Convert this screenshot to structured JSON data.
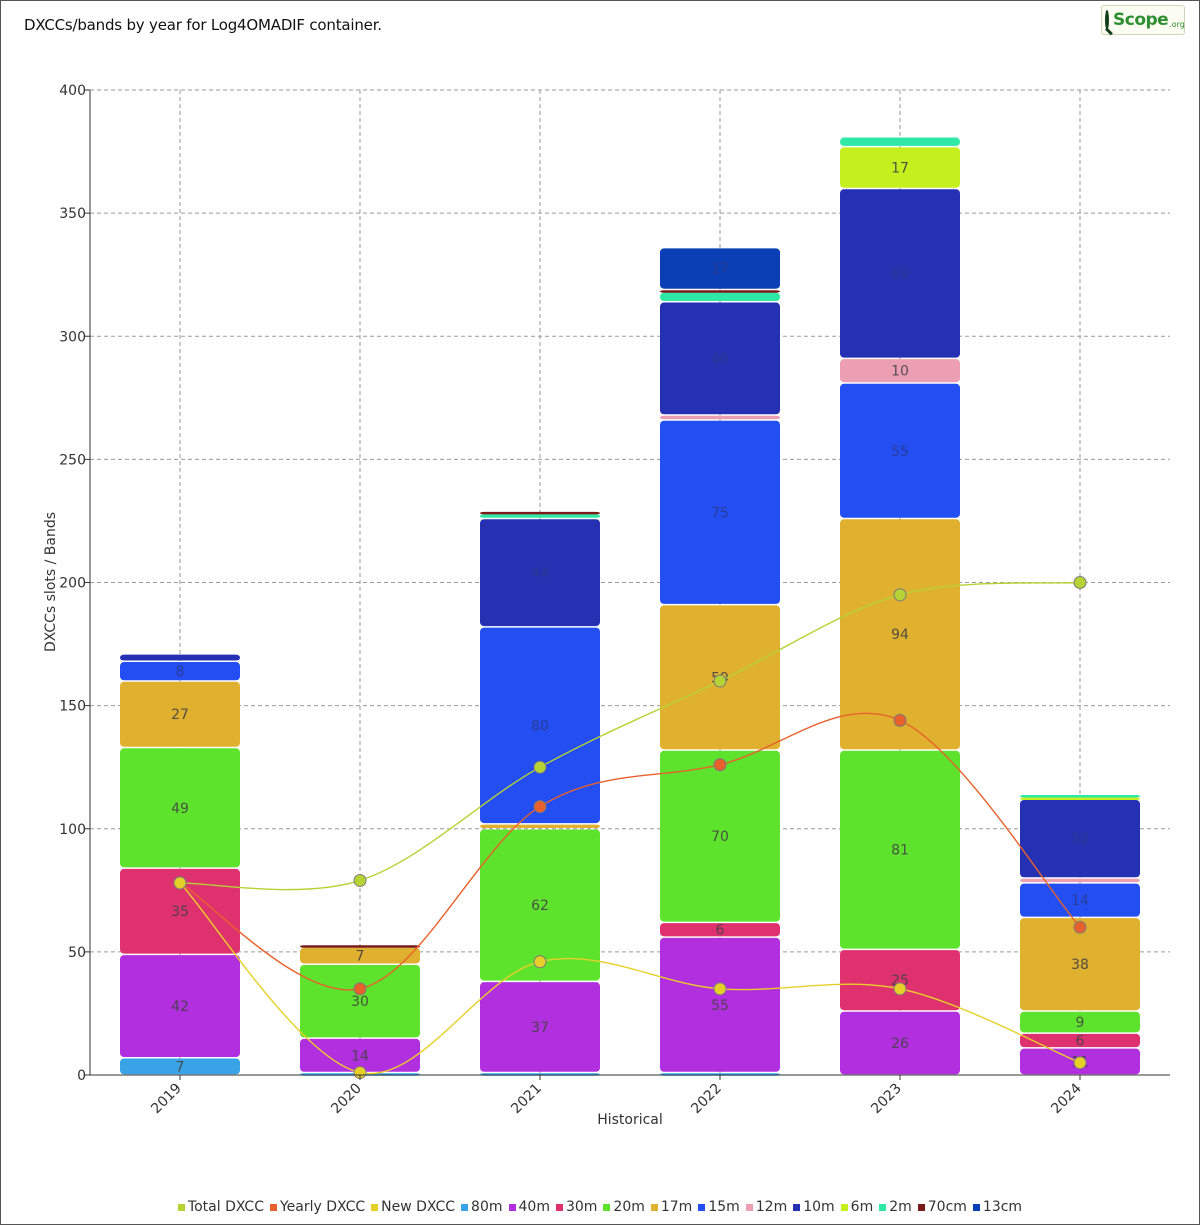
{
  "title": "DXCCs/bands by year for Log4OMADIF container.",
  "logo": {
    "text": "Scope",
    "suffix": ".org"
  },
  "chart_data": {
    "type": "bar",
    "stacked": true,
    "xlabel": "Historical",
    "ylabel": "DXCCs slots / Bands",
    "ylim": [
      0,
      400
    ],
    "yticks": [
      0,
      50,
      100,
      150,
      200,
      250,
      300,
      350,
      400
    ],
    "grid": true,
    "legend_position": "bottom",
    "categories": [
      "2019",
      "2020",
      "2021",
      "2022",
      "2023",
      "2024"
    ],
    "series": [
      {
        "name": "80m",
        "color": "#39a3e8",
        "values": [
          7,
          1,
          1,
          1,
          0,
          0
        ]
      },
      {
        "name": "40m",
        "color": "#b22fe0",
        "values": [
          42,
          14,
          37,
          55,
          26,
          11
        ]
      },
      {
        "name": "30m",
        "color": "#e0316f",
        "values": [
          35,
          0,
          0,
          6,
          25,
          6
        ]
      },
      {
        "name": "20m",
        "color": "#5ee32d",
        "values": [
          49,
          30,
          62,
          70,
          81,
          9
        ]
      },
      {
        "name": "17m",
        "color": "#e0b02f",
        "values": [
          27,
          7,
          2,
          59,
          94,
          38
        ]
      },
      {
        "name": "15m",
        "color": "#234ef2",
        "values": [
          8,
          0,
          80,
          75,
          55,
          14
        ]
      },
      {
        "name": "12m",
        "color": "#ec9fb2",
        "values": [
          0,
          0,
          0,
          2,
          10,
          2
        ]
      },
      {
        "name": "10m",
        "color": "#2530b3",
        "values": [
          3,
          0,
          44,
          46,
          69,
          32
        ]
      },
      {
        "name": "6m",
        "color": "#c6ef1e",
        "values": [
          0,
          0,
          0,
          0,
          17,
          1
        ]
      },
      {
        "name": "2m",
        "color": "#2fe8a5",
        "values": [
          0,
          0,
          2,
          4,
          4,
          1
        ]
      },
      {
        "name": "70cm",
        "color": "#7a1a1a",
        "values": [
          0,
          1,
          1,
          1,
          0,
          0
        ]
      },
      {
        "name": "13cm",
        "color": "#0b3fb5",
        "values": [
          0,
          0,
          0,
          17,
          0,
          0
        ]
      }
    ],
    "lines": [
      {
        "name": "Total DXCC",
        "color": "#b6d334",
        "values": [
          78,
          79,
          125,
          160,
          195,
          200
        ]
      },
      {
        "name": "Yearly DXCC",
        "color": "#e8612c",
        "values": [
          78,
          35,
          109,
          126,
          144,
          60
        ]
      },
      {
        "name": "New DXCC",
        "color": "#e6d027",
        "values": [
          78,
          1,
          46,
          35,
          35,
          5
        ]
      }
    ]
  }
}
